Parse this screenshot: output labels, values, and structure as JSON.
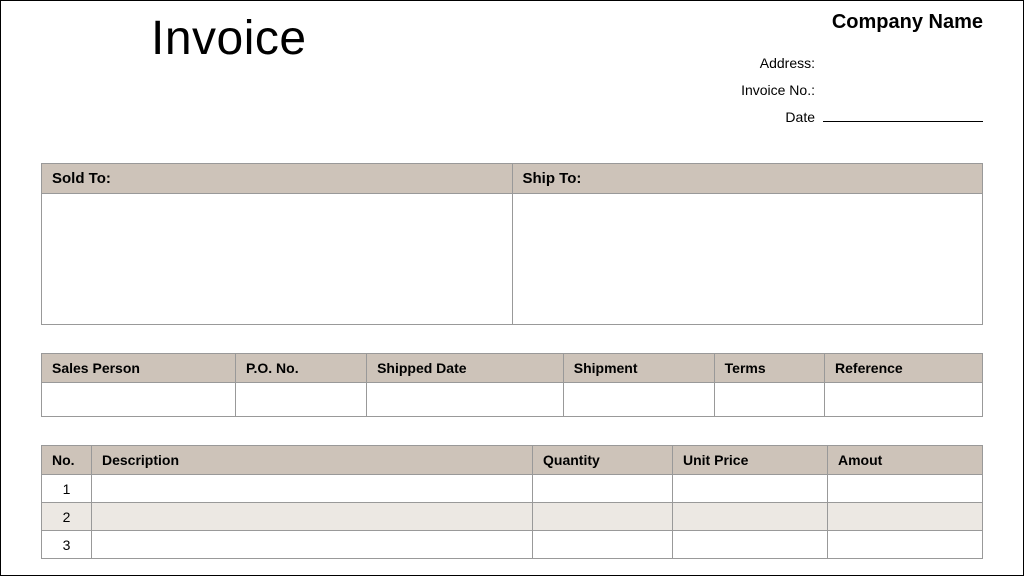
{
  "header": {
    "title": "Invoice",
    "company_name": "Company Name",
    "address_label": "Address:",
    "invoice_no_label": "Invoice No.:",
    "date_label": "Date"
  },
  "address_panel": {
    "sold_to_label": "Sold To:",
    "ship_to_label": "Ship To:",
    "sold_to_value": "",
    "ship_to_value": ""
  },
  "details_table": {
    "columns": [
      "Sales Person",
      "P.O. No.",
      "Shipped Date",
      "Shipment",
      "Terms",
      "Reference"
    ],
    "row": [
      "",
      "",
      "",
      "",
      "",
      ""
    ]
  },
  "items_table": {
    "columns": {
      "no": "No.",
      "description": "Description",
      "quantity": "Quantity",
      "unit_price": "Unit Price",
      "amount": "Amout"
    },
    "rows": [
      {
        "no": "1",
        "description": "",
        "quantity": "",
        "unit_price": "",
        "amount": ""
      },
      {
        "no": "2",
        "description": "",
        "quantity": "",
        "unit_price": "",
        "amount": ""
      },
      {
        "no": "3",
        "description": "",
        "quantity": "",
        "unit_price": "",
        "amount": ""
      }
    ]
  },
  "style": {
    "header_bg": "#cdc3b9",
    "alt_row_bg": "#ece8e3",
    "border_color": "#999999",
    "background_color": "#ffffff",
    "title_fontsize": 48,
    "header_fontsize": 15,
    "body_fontsize": 14,
    "font_family": "Arial"
  }
}
